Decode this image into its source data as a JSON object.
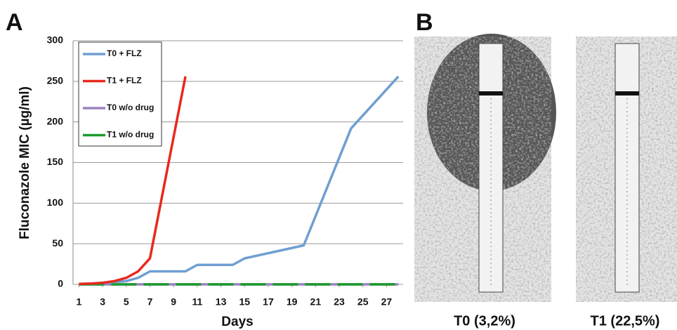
{
  "panels": [
    "A",
    "B"
  ],
  "chart_data": {
    "type": "line",
    "ylabel": "Fluconazole MIC (µg/ml)",
    "xlabel": "Days",
    "xlim": [
      0.5,
      28.4
    ],
    "ylim": [
      0,
      300
    ],
    "xticks": [
      1,
      3,
      5,
      7,
      9,
      11,
      13,
      15,
      17,
      19,
      21,
      23,
      25,
      27
    ],
    "yticks": [
      0,
      50,
      100,
      150,
      200,
      250,
      300
    ],
    "grid": true,
    "legend": "upper left",
    "series": [
      {
        "name": "T0 + FLZ",
        "color": "#6f9fd2",
        "x": [
          1,
          2,
          3,
          4,
          5,
          6,
          7,
          8,
          9,
          10,
          11,
          12,
          13,
          14,
          15,
          20,
          24,
          28
        ],
        "values": [
          0.5,
          1,
          2,
          3,
          4,
          8,
          16,
          16,
          16,
          16,
          24,
          24,
          24,
          24,
          32,
          48,
          192,
          256
        ]
      },
      {
        "name": "T1 + FLZ",
        "color": "#e8291c",
        "x": [
          1,
          2,
          3,
          4,
          5,
          6,
          7,
          10
        ],
        "values": [
          0.5,
          1,
          2,
          4,
          8,
          16,
          32,
          256
        ]
      },
      {
        "name": "T0 w/o drug",
        "color": "#9b82c0",
        "x": [
          1,
          28
        ],
        "values": [
          0,
          0
        ]
      },
      {
        "name": "T1 w/o drug",
        "color": "#1c9a2c",
        "x": [
          1,
          28
        ],
        "values": [
          0,
          0
        ]
      }
    ]
  },
  "images": [
    {
      "caption": "T0 (3,2%)"
    },
    {
      "caption": "T1 (22,5%)"
    }
  ]
}
